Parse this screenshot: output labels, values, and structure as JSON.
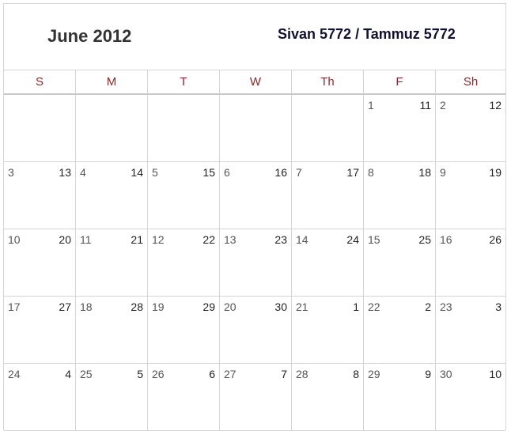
{
  "header": {
    "month_title": "June 2012",
    "hebrew_title": "Sivan 5772 / Tammuz 5772"
  },
  "days_of_week": [
    "S",
    "M",
    "T",
    "W",
    "Th",
    "F",
    "Sh"
  ],
  "weeks": [
    [
      {
        "greg": "",
        "heb": ""
      },
      {
        "greg": "",
        "heb": ""
      },
      {
        "greg": "",
        "heb": ""
      },
      {
        "greg": "",
        "heb": ""
      },
      {
        "greg": "",
        "heb": ""
      },
      {
        "greg": "1",
        "heb": "11"
      },
      {
        "greg": "2",
        "heb": "12"
      }
    ],
    [
      {
        "greg": "3",
        "heb": "13"
      },
      {
        "greg": "4",
        "heb": "14"
      },
      {
        "greg": "5",
        "heb": "15"
      },
      {
        "greg": "6",
        "heb": "16"
      },
      {
        "greg": "7",
        "heb": "17"
      },
      {
        "greg": "8",
        "heb": "18"
      },
      {
        "greg": "9",
        "heb": "19"
      }
    ],
    [
      {
        "greg": "10",
        "heb": "20"
      },
      {
        "greg": "11",
        "heb": "21"
      },
      {
        "greg": "12",
        "heb": "22"
      },
      {
        "greg": "13",
        "heb": "23"
      },
      {
        "greg": "14",
        "heb": "24"
      },
      {
        "greg": "15",
        "heb": "25"
      },
      {
        "greg": "16",
        "heb": "26"
      }
    ],
    [
      {
        "greg": "17",
        "heb": "27"
      },
      {
        "greg": "18",
        "heb": "28"
      },
      {
        "greg": "19",
        "heb": "29"
      },
      {
        "greg": "20",
        "heb": "30"
      },
      {
        "greg": "21",
        "heb": "1"
      },
      {
        "greg": "22",
        "heb": "2"
      },
      {
        "greg": "23",
        "heb": "3"
      }
    ],
    [
      {
        "greg": "24",
        "heb": "4"
      },
      {
        "greg": "25",
        "heb": "5"
      },
      {
        "greg": "26",
        "heb": "6"
      },
      {
        "greg": "27",
        "heb": "7"
      },
      {
        "greg": "28",
        "heb": "8"
      },
      {
        "greg": "29",
        "heb": "9"
      },
      {
        "greg": "30",
        "heb": "10"
      }
    ]
  ],
  "colors": {
    "dow_text": "#8b2a2a",
    "grid_line": "#d4d4d4",
    "hebrew_title": "#111133"
  }
}
